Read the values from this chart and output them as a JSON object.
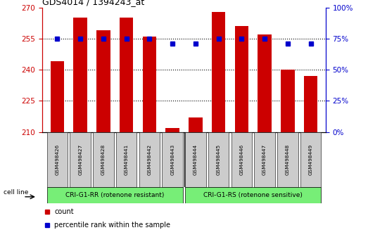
{
  "title": "GDS4014 / 1394243_at",
  "samples": [
    "GSM498426",
    "GSM498427",
    "GSM498428",
    "GSM498441",
    "GSM498442",
    "GSM498443",
    "GSM498444",
    "GSM498445",
    "GSM498446",
    "GSM498447",
    "GSM498448",
    "GSM498449"
  ],
  "count_values": [
    244,
    265,
    259,
    265,
    256,
    212,
    217,
    268,
    261,
    257,
    240,
    237
  ],
  "percentile_values": [
    75,
    75,
    75,
    75,
    75,
    71,
    71,
    75,
    75,
    75,
    71,
    71
  ],
  "bar_color": "#cc0000",
  "dot_color": "#0000cc",
  "ylim_left": [
    210,
    270
  ],
  "ylim_right": [
    0,
    100
  ],
  "yticks_left": [
    210,
    225,
    240,
    255,
    270
  ],
  "yticks_right": [
    0,
    25,
    50,
    75,
    100
  ],
  "group1_label": "CRI-G1-RR (rotenone resistant)",
  "group2_label": "CRI-G1-RS (rotenone sensitive)",
  "group1_indices": [
    0,
    1,
    2,
    3,
    4,
    5
  ],
  "group2_indices": [
    6,
    7,
    8,
    9,
    10,
    11
  ],
  "group_bg_color": "#77ee77",
  "tick_bg_color": "#cccccc",
  "legend_count_label": "count",
  "legend_pct_label": "percentile rank within the sample",
  "cell_line_label": "cell line",
  "ylabel_left_color": "#cc0000",
  "ylabel_right_color": "#0000cc",
  "grid_dotted_at": [
    225,
    240,
    255
  ],
  "bar_width": 0.6
}
